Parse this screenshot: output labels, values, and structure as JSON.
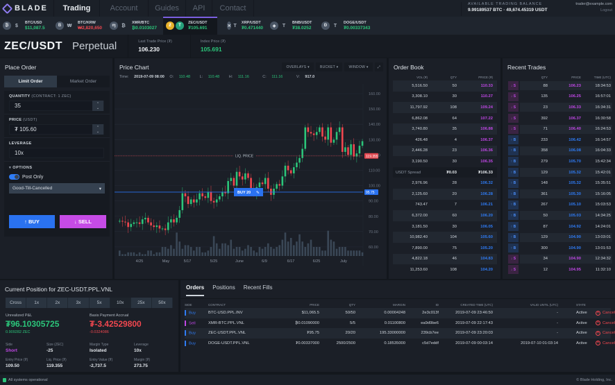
{
  "nav": {
    "logo": "BLADE",
    "items": [
      {
        "label": "Trading",
        "active": true
      },
      {
        "label": "Account",
        "active": false
      },
      {
        "label": "Guides",
        "active": false
      },
      {
        "label": "API",
        "active": false
      },
      {
        "label": "Contact",
        "active": false
      }
    ],
    "balance_label": "AVAILABLE TRADING BALANCE",
    "balance_value": "9.99189537 BTC  ·  49,674.45319 USDT",
    "user_email": "trader@example.com",
    "logout": "Logout"
  },
  "tickers": [
    {
      "symbol": "BTC/USD",
      "price": "$11,087.5",
      "color": "green",
      "base": "₿",
      "quote": "$",
      "active": false
    },
    {
      "symbol": "BTC/KRW",
      "price": "₩2,820,650",
      "color": "red",
      "base": "B",
      "quote": "₩",
      "active": false
    },
    {
      "symbol": "XMR/BTC",
      "price": "₿0.0103027",
      "color": "green",
      "base": "ɱ",
      "quote": "₿",
      "active": false
    },
    {
      "symbol": "ZEC/USDT",
      "price": "₮105.691",
      "color": "green",
      "base": "Ƶ",
      "quote": "T",
      "active": true
    },
    {
      "symbol": "XRP/USDT",
      "price": "₮0.471440",
      "color": "green",
      "base": "✕",
      "quote": "T",
      "active": false
    },
    {
      "symbol": "BNB/USDT",
      "price": "₮38.0252",
      "color": "green",
      "base": "◈",
      "quote": "T",
      "active": false
    },
    {
      "symbol": "DOGE/USDT",
      "price": "₮0.00337343",
      "color": "green",
      "base": "Ð",
      "quote": "T",
      "active": false
    }
  ],
  "header": {
    "pair": "ZEC/USDT",
    "type": "Perpetual",
    "last_trade_label": "Last Trade Price (₮)",
    "last_trade_value": "106.230",
    "index_label": "Index Price (₮)",
    "index_value": "105.691"
  },
  "place_order": {
    "title": "Place Order",
    "tabs": [
      "Limit Order",
      "Market Order"
    ],
    "quantity_label": "QUANTITY",
    "quantity_sub": "(CONTRACT: 1 ZEC)",
    "quantity_value": "35",
    "price_label": "PRICE",
    "price_sub": "(USDT)",
    "price_value": "₮  105.60",
    "leverage_label": "LEVERAGE",
    "leverage_value": "10x",
    "options_label": "OPTIONS",
    "post_only": "Post Only",
    "tif": "Good-Till-Cancelled",
    "buy": "↑ BUY",
    "sell": "↓ SELL"
  },
  "price_chart": {
    "title": "Price Chart",
    "buttons": [
      "OVERLAYS ▾",
      "BUCKET ▾",
      "WINDOW ▾"
    ],
    "time_label": "Time:",
    "time": "2019-07-09 08:00",
    "o_label": "O:",
    "o": "110.48",
    "l_label": "L:",
    "l": "110.48",
    "h_label": "H:",
    "h": "111.16",
    "c_label": "C:",
    "c": "111.16",
    "v_label": "V:",
    "v": "917.0",
    "liq_label": "LIQ. PRICE",
    "liq_value": "119.355",
    "order_label": "BUY 20",
    "order_value": "95.75"
  },
  "chart_data": {
    "type": "candlestick",
    "title": "Price Chart",
    "y_ticks": [
      "160.00",
      "150.00",
      "140.00",
      "130.00",
      "120.00",
      "110.00",
      "100.00",
      "90.00",
      "80.00",
      "70.00",
      "60.00"
    ],
    "x_ticks": [
      "4/25",
      "May",
      "5/17",
      "5/25",
      "June",
      "6/9",
      "6/17",
      "6/25",
      "July"
    ],
    "ylim": [
      55,
      165
    ],
    "lines": [
      {
        "name": "LIQ. PRICE",
        "value": 119.355,
        "style": "dotted",
        "color": "#e0474f"
      },
      {
        "name": "BUY 20",
        "value": 95.75,
        "color": "#2a72f0"
      }
    ],
    "series": [
      {
        "name": "close",
        "values": [
          77,
          76.5,
          76,
          73,
          75,
          76,
          76,
          75,
          78,
          79,
          76,
          74,
          73,
          74,
          72,
          72,
          71,
          76,
          78,
          76,
          79,
          84,
          95,
          93,
          88,
          91,
          89,
          91,
          95,
          93,
          92,
          96,
          90,
          89,
          91,
          93,
          96,
          95,
          103,
          105,
          100,
          109,
          106,
          104,
          108,
          105,
          98,
          95,
          99,
          102,
          101,
          105,
          98,
          94,
          98,
          101,
          100,
          106,
          113,
          110,
          108,
          112,
          115,
          118,
          124,
          138,
          135,
          134,
          133,
          135,
          138,
          132,
          130,
          138,
          128,
          130,
          135,
          138,
          122,
          125,
          120,
          127,
          119,
          121,
          126,
          129
        ]
      }
    ]
  },
  "order_book": {
    "title": "Order Book",
    "headers": [
      "VOL (₮)",
      "QTY",
      "PRICE (₮)"
    ],
    "asks": [
      [
        "5,516.50",
        "50",
        "110.33"
      ],
      [
        "3,308.10",
        "30",
        "110.27"
      ],
      [
        "11,797.92",
        "108",
        "109.24"
      ],
      [
        "6,862.08",
        "64",
        "107.22"
      ],
      [
        "3,740.80",
        "35",
        "106.88"
      ],
      [
        "426.48",
        "4",
        "106.37"
      ],
      [
        "2,446.28",
        "23",
        "106.36"
      ],
      [
        "3,190.50",
        "30",
        "106.35"
      ]
    ],
    "spread": [
      "USDT Spread",
      "₮0.03",
      "₮106.33"
    ],
    "bids": [
      [
        "2,976.96",
        "28",
        "106.32"
      ],
      [
        "2,125.60",
        "20",
        "106.28"
      ],
      [
        "743.47",
        "7",
        "106.21"
      ],
      [
        "6,372.00",
        "60",
        "106.20"
      ],
      [
        "3,181.50",
        "30",
        "106.05"
      ],
      [
        "10,982.40",
        "104",
        "105.60"
      ],
      [
        "7,890.00",
        "75",
        "105.20"
      ],
      [
        "4,822.18",
        "46",
        "104.83"
      ],
      [
        "11,253.60",
        "108",
        "104.20"
      ]
    ]
  },
  "recent_trades": {
    "title": "Recent Trades",
    "headers": [
      "QTY",
      "PRICE",
      "TIME (UTC)"
    ],
    "rows": [
      {
        "side": "s",
        "label": "↓ S",
        "qty": "88",
        "price": "106.23",
        "time": "18:34:53"
      },
      {
        "side": "s",
        "label": "↓ S",
        "qty": "135",
        "price": "106.25",
        "time": "16:57:01"
      },
      {
        "side": "s",
        "label": "↓ S",
        "qty": "23",
        "price": "106.33",
        "time": "16:34:31"
      },
      {
        "side": "s",
        "label": "↓ S",
        "qty": "392",
        "price": "106.37",
        "time": "16:30:58"
      },
      {
        "side": "s",
        "label": "↓ S",
        "qty": "71",
        "price": "106.40",
        "time": "16:24:53"
      },
      {
        "side": "b",
        "label": "↑ B",
        "qty": "233",
        "price": "106.42",
        "time": "16:14:57"
      },
      {
        "side": "b",
        "label": "↑ B",
        "qty": "358",
        "price": "106.08",
        "time": "16:04:33"
      },
      {
        "side": "b",
        "label": "↑ B",
        "qty": "279",
        "price": "105.70",
        "time": "15:42:34"
      },
      {
        "side": "b",
        "label": "↑ B",
        "qty": "129",
        "price": "105.32",
        "time": "15:42:01"
      },
      {
        "side": "b",
        "label": "↑ B",
        "qty": "148",
        "price": "105.32",
        "time": "15:35:51"
      },
      {
        "side": "b",
        "label": "↑ B",
        "qty": "361",
        "price": "105.30",
        "time": "15:16:05"
      },
      {
        "side": "b",
        "label": "↑ B",
        "qty": "267",
        "price": "105.10",
        "time": "15:03:53"
      },
      {
        "side": "b",
        "label": "↑ B",
        "qty": "50",
        "price": "105.03",
        "time": "14:34:25"
      },
      {
        "side": "b",
        "label": "↑ B",
        "qty": "87",
        "price": "104.92",
        "time": "14:24:01"
      },
      {
        "side": "b",
        "label": "↑ B",
        "qty": "129",
        "price": "104.90",
        "time": "13:03:01"
      },
      {
        "side": "b",
        "label": "↑ B",
        "qty": "300",
        "price": "104.90",
        "time": "13:01:53"
      },
      {
        "side": "s",
        "label": "↓ S",
        "qty": "34",
        "price": "104.90",
        "time": "12:34:32"
      },
      {
        "side": "s",
        "label": "↓ S",
        "qty": "12",
        "price": "104.95",
        "time": "11:32:10"
      }
    ]
  },
  "position": {
    "title": "Current Position for ZEC-USDT.PPL.VNL",
    "leverage_tabs": [
      "Cross",
      "1x",
      "2x",
      "3x",
      "5x",
      "10x",
      "25x",
      "50x"
    ],
    "active_leverage": "10x",
    "pnl_label": "Unrealized P&L",
    "pnl_value": "₮96.10305725",
    "pnl_sub": "0.909282 ZEC",
    "basis_label": "Basis Payment Accrual",
    "basis_value": "₮-3.42529800",
    "basis_sub": "-0.0324086",
    "fields": [
      {
        "k": "Side",
        "v": "Short"
      },
      {
        "k": "Size (ZEC)",
        "v": "-25"
      },
      {
        "k": "Margin Type",
        "v": "Isolated"
      },
      {
        "k": "Leverage",
        "v": "10x"
      },
      {
        "k": "Entry Price (₮)",
        "v": "109.50"
      },
      {
        "k": "Liq. Price (₮)",
        "v": "119.355"
      },
      {
        "k": "Entry Value (₮)",
        "v": "-2,737.5"
      },
      {
        "k": "Margin (₮)",
        "v": "273.75"
      }
    ]
  },
  "orders": {
    "tabs": [
      "Orders",
      "Positions",
      "Recent Fills"
    ],
    "headers": [
      "SIDE",
      "CONTRACT",
      "PRICE",
      "QTY",
      "MARGIN",
      "ID",
      "CREATED TIME (UTC)",
      "VALID UNTIL (UTC)",
      "STATE",
      ""
    ],
    "rows": [
      {
        "side": "Buy",
        "contract": "BTC-USD.PPL.INV",
        "price": "$11,065.5",
        "qty": "50/50",
        "margin": "0.00004248",
        "id": "2e3c013f",
        "created": "2019-07-09 23:46:50",
        "valid": "-",
        "state": "Active",
        "action": "Cancel"
      },
      {
        "side": "Sell",
        "contract": "XMR-BTC.PPL.VNL",
        "price": "₿0.01090000",
        "qty": "5/5",
        "margin": "0.01100800",
        "id": "ea9d9be6",
        "created": "2019-07-09 22:17:43",
        "valid": "-",
        "state": "Active",
        "action": "Cancel"
      },
      {
        "side": "Buy",
        "contract": "ZEC-USDT.PPL.VNL",
        "price": "₮95.75",
        "qty": "20/20",
        "margin": "195.33000000",
        "id": "239cb7ee",
        "created": "2019-07-09 23:20:03",
        "valid": "-",
        "state": "Active",
        "action": "Cancel"
      },
      {
        "side": "Buy",
        "contract": "DOGE-USDT.PPL.VNL",
        "price": "₮0.00337000",
        "qty": "2500/2500",
        "margin": "0.18535000",
        "id": "c5d7eddf",
        "created": "2019-07-09 00:03:14",
        "valid": "2019-07-10 01:03:14",
        "state": "Active",
        "action": "Cancel"
      }
    ]
  },
  "footer": {
    "status": "All systems operational",
    "copyright": "© Blade Holding, Inc."
  },
  "colors": {
    "green": "#2bc57a",
    "red": "#f0474f",
    "purple": "#c047e6",
    "blue": "#2f7cf6",
    "accent": "#7b5fe0"
  }
}
